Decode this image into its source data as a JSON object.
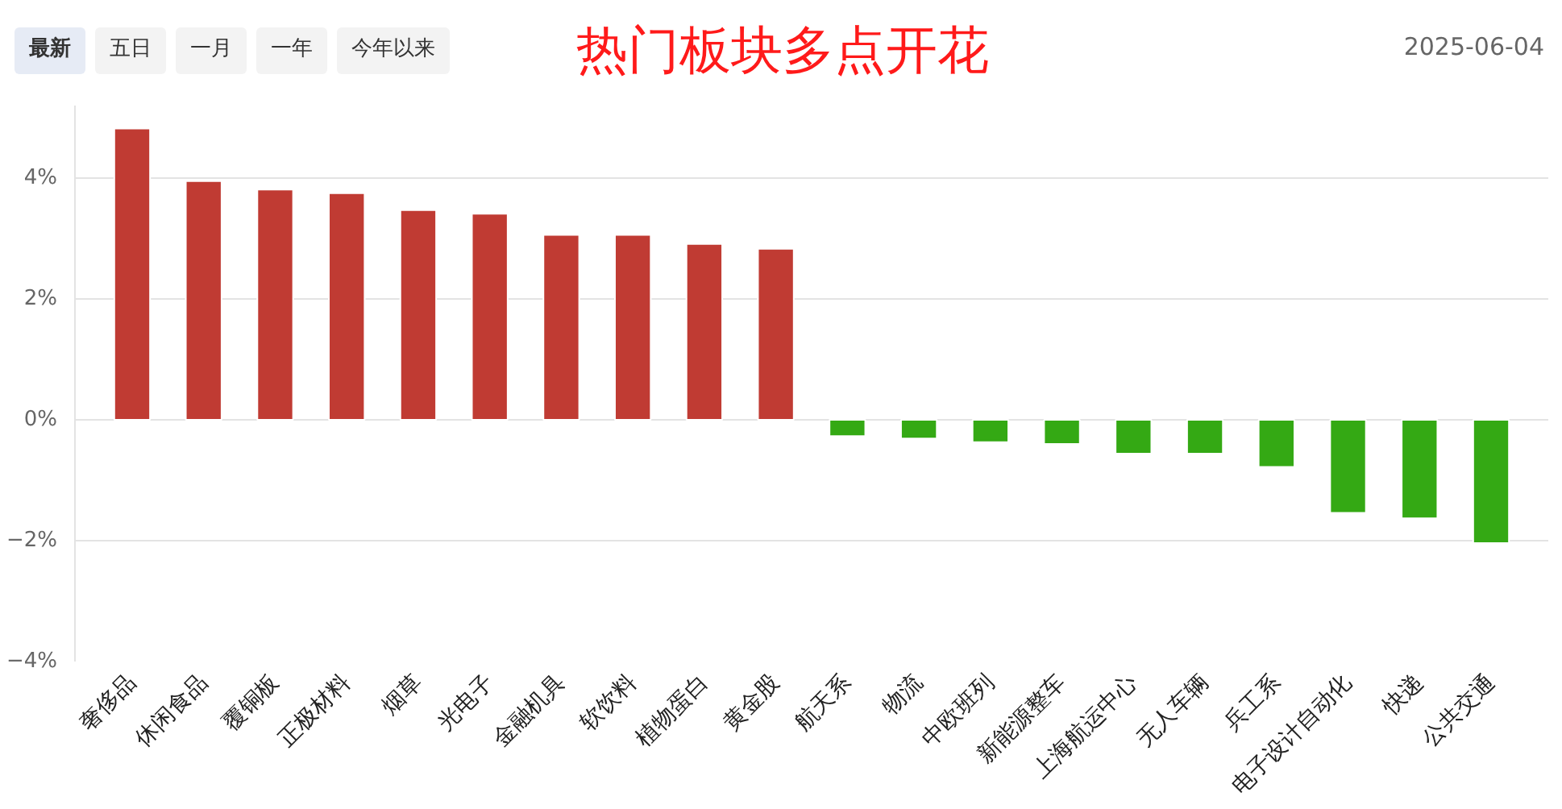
{
  "chart_data": {
    "type": "bar",
    "title": "热门板块多点开花",
    "subtitle": "2025-06-04",
    "annotations": [
      "最新",
      "五日",
      "一月",
      "一年",
      "今年以来"
    ],
    "categories": [
      "奢侈品",
      "休闲食品",
      "覆铜板",
      "正极材料",
      "烟草",
      "光电子",
      "金融机具",
      "软饮料",
      "植物蛋白",
      "黄金股",
      "航天系",
      "物流",
      "中欧班列",
      "新能源整车",
      "上海航运中心",
      "无人车辆",
      "兵工系",
      "电子设计自动化",
      "快递",
      "公共交通"
    ],
    "values": [
      4.82,
      3.95,
      3.81,
      3.75,
      3.47,
      3.41,
      3.06,
      3.06,
      2.91,
      2.83,
      -0.27,
      -0.31,
      -0.37,
      -0.4,
      -0.56,
      -0.56,
      -0.78,
      -1.54,
      -1.63,
      -2.04
    ],
    "colors": [
      "#c03b33",
      "#c03b33",
      "#c03b33",
      "#c03b33",
      "#c03b33",
      "#c03b33",
      "#c03b33",
      "#c03b33",
      "#c03b33",
      "#c03b33",
      "#34a914",
      "#34a914",
      "#34a914",
      "#34a914",
      "#34a914",
      "#34a914",
      "#34a914",
      "#34a914",
      "#34a914",
      "#34a914"
    ],
    "ylim": [
      -4,
      5.2
    ],
    "yticks": [
      {
        "value": -4,
        "label": "−4%"
      },
      {
        "value": -2,
        "label": "−2%"
      },
      {
        "value": 0,
        "label": "0%"
      },
      {
        "value": 2,
        "label": "2%"
      },
      {
        "value": 4,
        "label": "4%"
      }
    ],
    "grid": "y"
  }
}
